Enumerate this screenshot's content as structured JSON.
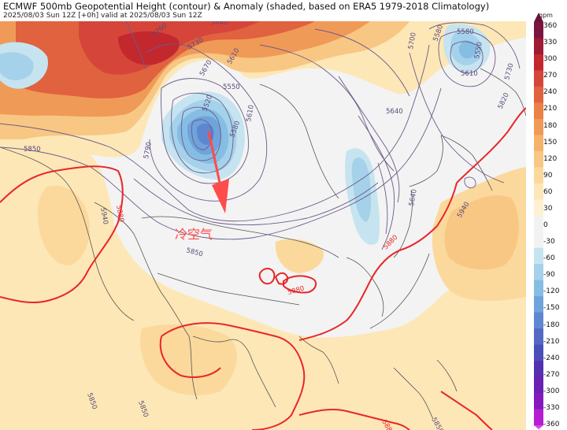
{
  "header": {
    "title": "ECMWF 500mb Geopotential Height (contour) & Anomaly (shaded, based on ERA5 1979-2018 Climatology)",
    "subtitle": "2025/08/03 Sun 12Z [+0h] valid at 2025/08/03 Sun 12Z"
  },
  "colorbar": {
    "unit": "gpm",
    "ticks": [
      "360",
      "330",
      "300",
      "270",
      "240",
      "210",
      "180",
      "150",
      "120",
      "90",
      "60",
      "30",
      "0",
      "-30",
      "-60",
      "-90",
      "-120",
      "-150",
      "-180",
      "-210",
      "-240",
      "-270",
      "-300",
      "-330",
      "-360"
    ],
    "colors": [
      "#7b1540",
      "#9e1a35",
      "#c2282e",
      "#d6453a",
      "#e0623f",
      "#ea8148",
      "#f09a58",
      "#f5b26b",
      "#f8c784",
      "#fbd99c",
      "#fde7b6",
      "#fdf1d2",
      "#f2f2f2",
      "#f2f2f2",
      "#c6e4f0",
      "#a5d2ea",
      "#86bde3",
      "#6fa3db",
      "#5f87d0",
      "#5569c4",
      "#4b4fb8",
      "#5530b0",
      "#6a20b2",
      "#8519bd",
      "#b51ed2"
    ]
  },
  "contour_labels": {
    "l5760": "5760",
    "l5730": "5730",
    "l5670": "5670",
    "l5640": "5640",
    "l5700": "5700",
    "l5580": "5580",
    "l5550": "5550",
    "l5610a": "5610",
    "l5520": "5520",
    "l5580b": "5580",
    "l5610b": "5610",
    "l5790": "5790",
    "l5850a": "5850",
    "l5640b": "5640",
    "l5640c": "5640",
    "l5580c": "5580",
    "l5550b": "5550",
    "l5610c": "5610",
    "l5730b": "5730",
    "l5820": "5820",
    "l5940a": "5940",
    "l5880a": "5880",
    "l5850b": "5850",
    "l5880b": "5880",
    "l5880c": "5880",
    "l5940b": "5940",
    "l5850c": "5850",
    "l5850d": "5850",
    "l5880d": "5880",
    "l5850e": "5850"
  },
  "annotation": {
    "label": "冷空气",
    "arrow_color": "#ff4b4b"
  }
}
